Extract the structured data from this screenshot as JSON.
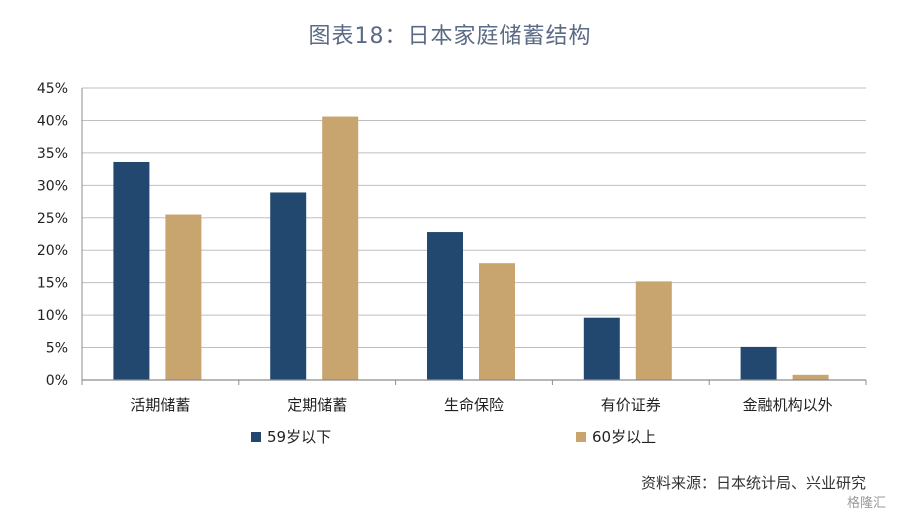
{
  "title": "图表18：日本家庭储蓄结构",
  "source": "资料来源：日本统计局、兴业研究",
  "watermark": "格隆汇",
  "colors": {
    "series1": "#22486f",
    "series2": "#c8a46e",
    "grid": "#bfbfbf",
    "axis": "#8c8c8c"
  },
  "chart_data": {
    "type": "bar",
    "categories": [
      "活期储蓄",
      "定期储蓄",
      "生命保险",
      "有价证券",
      "金融机构以外"
    ],
    "series": [
      {
        "name": "59岁以下",
        "values": [
          33.6,
          28.9,
          22.8,
          9.6,
          5.1
        ]
      },
      {
        "name": "60岁以上",
        "values": [
          25.5,
          40.6,
          18.0,
          15.2,
          0.8
        ]
      }
    ],
    "ylim": [
      0,
      45
    ],
    "yticks": [
      "0%",
      "5%",
      "10%",
      "15%",
      "20%",
      "25%",
      "30%",
      "35%",
      "40%",
      "45%"
    ],
    "grid": true,
    "legend_position": "bottom-left"
  }
}
